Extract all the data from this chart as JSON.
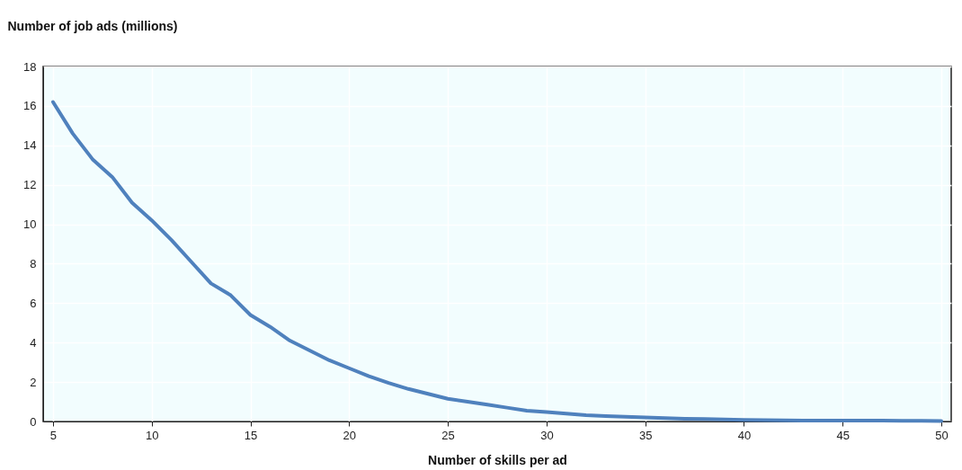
{
  "chart_data": {
    "type": "line",
    "xlabel": "Number of skills per ad",
    "ylabel": "Number of job ads (millions)",
    "x": [
      5,
      6,
      7,
      8,
      9,
      10,
      11,
      12,
      13,
      14,
      15,
      16,
      17,
      18,
      19,
      20,
      21,
      22,
      23,
      24,
      25,
      26,
      27,
      28,
      29,
      30,
      31,
      32,
      33,
      34,
      35,
      36,
      37,
      38,
      39,
      40,
      41,
      42,
      43,
      44,
      45,
      46,
      47,
      48,
      49,
      50
    ],
    "series": [
      {
        "color": "#4f81bd",
        "values": [
          16.2,
          14.6,
          13.3,
          12.4,
          11.1,
          10.2,
          9.2,
          8.1,
          7.0,
          6.4,
          5.4,
          4.8,
          4.1,
          3.6,
          3.1,
          2.7,
          2.3,
          1.95,
          1.65,
          1.4,
          1.15,
          1.0,
          0.85,
          0.7,
          0.55,
          0.48,
          0.4,
          0.32,
          0.27,
          0.24,
          0.2,
          0.17,
          0.14,
          0.12,
          0.1,
          0.08,
          0.07,
          0.06,
          0.05,
          0.05,
          0.05,
          0.04,
          0.04,
          0.03,
          0.03,
          0.02
        ]
      }
    ],
    "xlim": [
      4.5,
      50.5
    ],
    "xticks": [
      5,
      10,
      15,
      20,
      25,
      30,
      35,
      40,
      45,
      50
    ],
    "ylim": [
      0,
      18
    ],
    "yticks": [
      0,
      2,
      4,
      6,
      8,
      10,
      12,
      14,
      16,
      18
    ],
    "grid": true
  }
}
